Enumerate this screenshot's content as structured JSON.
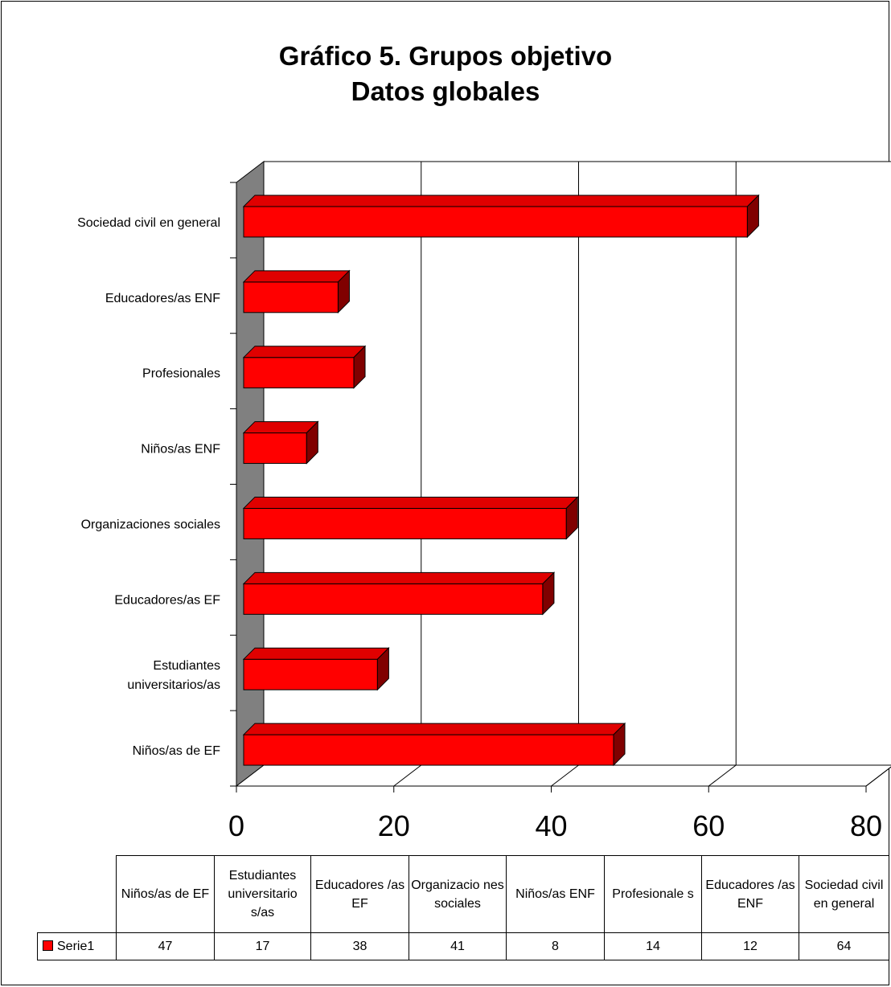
{
  "chart_data": {
    "type": "bar",
    "orientation": "horizontal",
    "style": "3d",
    "title": "Gráfico 5. Grupos objetivo",
    "subtitle": "Datos globales",
    "xlim": [
      0,
      80
    ],
    "x_ticks": [
      "0",
      "20",
      "40",
      "60",
      "80"
    ],
    "grid": true,
    "categories": [
      "Niños/as de EF",
      "Estudiantes universitarios/as",
      "Educadores/as EF",
      "Organizaciones sociales",
      "Niños/as ENF",
      "Profesionales",
      "Educadores/as ENF",
      "Sociedad civil en general"
    ],
    "series": [
      {
        "name": "Serie1",
        "values": [
          47,
          17,
          38,
          41,
          8,
          14,
          12,
          64
        ]
      }
    ],
    "data_table": {
      "headers": [
        "Niños/as de EF",
        "Estudiantes universitario s/as",
        "Educadores /as EF",
        "Organizacio nes sociales",
        "Niños/as ENF",
        "Profesionale s",
        "Educadores /as ENF",
        "Sociedad civil en general"
      ],
      "legend_key": "Serie1",
      "values": [
        "47",
        "17",
        "38",
        "41",
        "8",
        "14",
        "12",
        "64"
      ]
    },
    "colors": {
      "bar": "#ff0000",
      "bar_top": "#e00000",
      "bar_side": "#800000",
      "wall": "#808080"
    }
  }
}
